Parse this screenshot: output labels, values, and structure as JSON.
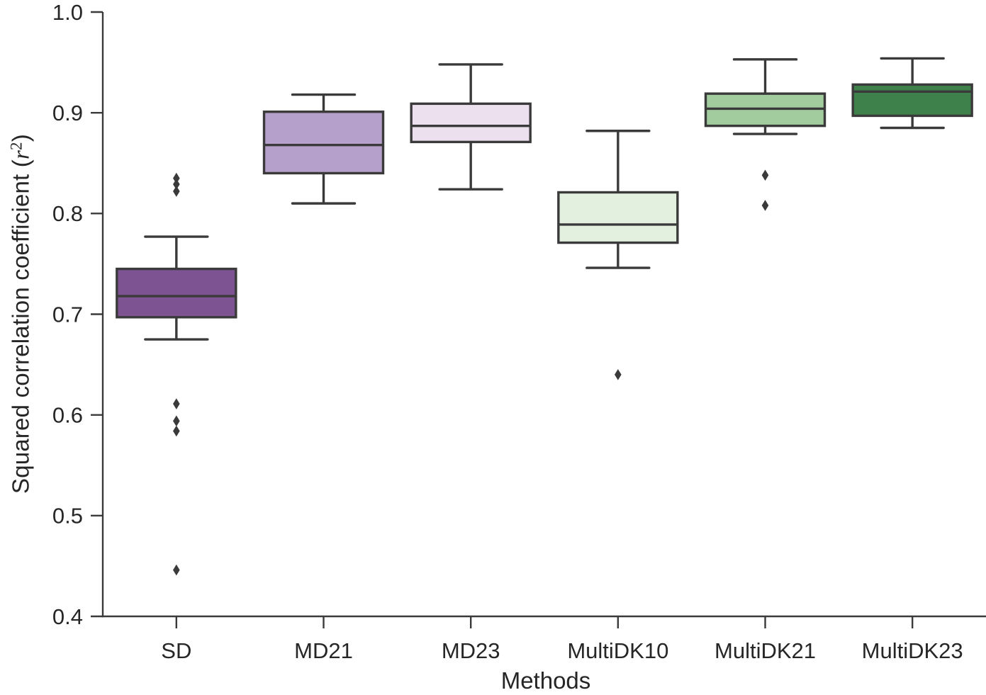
{
  "figure": {
    "xlabel": "Methods",
    "ylabel_parts": {
      "prefix": "Squared correlation coefficient (",
      "var": "r",
      "sup": "2",
      "suffix": ")"
    }
  },
  "chart_data": {
    "type": "box",
    "title": "",
    "xlabel": "Methods",
    "ylabel": "Squared correlation coefficient (r²)",
    "ylim": [
      0.4,
      1.0
    ],
    "yticks": [
      0.4,
      0.5,
      0.6,
      0.7,
      0.8,
      0.9,
      1.0
    ],
    "grid": false,
    "legend": false,
    "line_color": "#3A3A3A",
    "text_color": "#262626",
    "outlier_marker": "diamond",
    "categories": [
      "SD",
      "MD21",
      "MD23",
      "MultiDK10",
      "MultiDK21",
      "MultiDK23"
    ],
    "boxes": [
      {
        "category": "SD",
        "fill": "#7E5392",
        "whisker_low": 0.675,
        "q1": 0.697,
        "median": 0.718,
        "q3": 0.745,
        "whisker_high": 0.777,
        "outliers": [
          0.835,
          0.829,
          0.822,
          0.611,
          0.594,
          0.584,
          0.446
        ]
      },
      {
        "category": "MD21",
        "fill": "#B5A0CC",
        "whisker_low": 0.81,
        "q1": 0.84,
        "median": 0.868,
        "q3": 0.901,
        "whisker_high": 0.918,
        "outliers": []
      },
      {
        "category": "MD23",
        "fill": "#ECE0EF",
        "whisker_low": 0.824,
        "q1": 0.871,
        "median": 0.887,
        "q3": 0.909,
        "whisker_high": 0.948,
        "outliers": []
      },
      {
        "category": "MultiDK10",
        "fill": "#E3F0E0",
        "whisker_low": 0.746,
        "q1": 0.771,
        "median": 0.789,
        "q3": 0.821,
        "whisker_high": 0.882,
        "outliers": [
          0.64
        ]
      },
      {
        "category": "MultiDK21",
        "fill": "#A2CC9E",
        "whisker_low": 0.879,
        "q1": 0.887,
        "median": 0.904,
        "q3": 0.919,
        "whisker_high": 0.953,
        "outliers": [
          0.838,
          0.808
        ]
      },
      {
        "category": "MultiDK23",
        "fill": "#3F814B",
        "whisker_low": 0.885,
        "q1": 0.897,
        "median": 0.921,
        "q3": 0.928,
        "whisker_high": 0.954,
        "outliers": []
      }
    ]
  }
}
